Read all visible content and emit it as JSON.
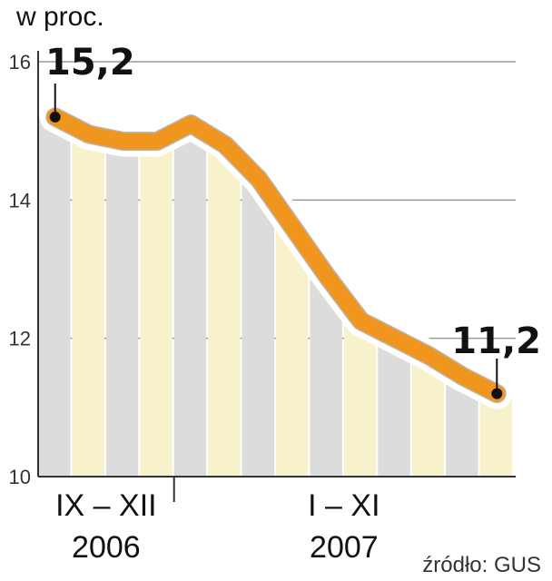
{
  "chart_data": {
    "type": "area",
    "unit_label": "w proc.",
    "y_ticks": [
      "10",
      "12",
      "14",
      "16"
    ],
    "ylim": [
      10,
      16
    ],
    "series": [
      {
        "values": [
          15.2,
          14.95,
          14.85,
          14.85,
          15.1,
          14.8,
          14.3,
          13.6,
          12.9,
          12.25,
          12.0,
          11.75,
          11.45,
          11.2
        ]
      }
    ],
    "start_label": "15,2",
    "end_label": "11,2",
    "groups": [
      {
        "line1": "IX – XII",
        "line2": "2006"
      },
      {
        "line1": "I – XI",
        "line2": "2007"
      }
    ],
    "source": "źródło: GUS",
    "colors": {
      "line": "#f0961e",
      "stripe_gray": "#dcdcdc",
      "stripe_yellow": "#f7f2cc",
      "grid": "#9a9a9a",
      "marker": "#111111"
    }
  }
}
